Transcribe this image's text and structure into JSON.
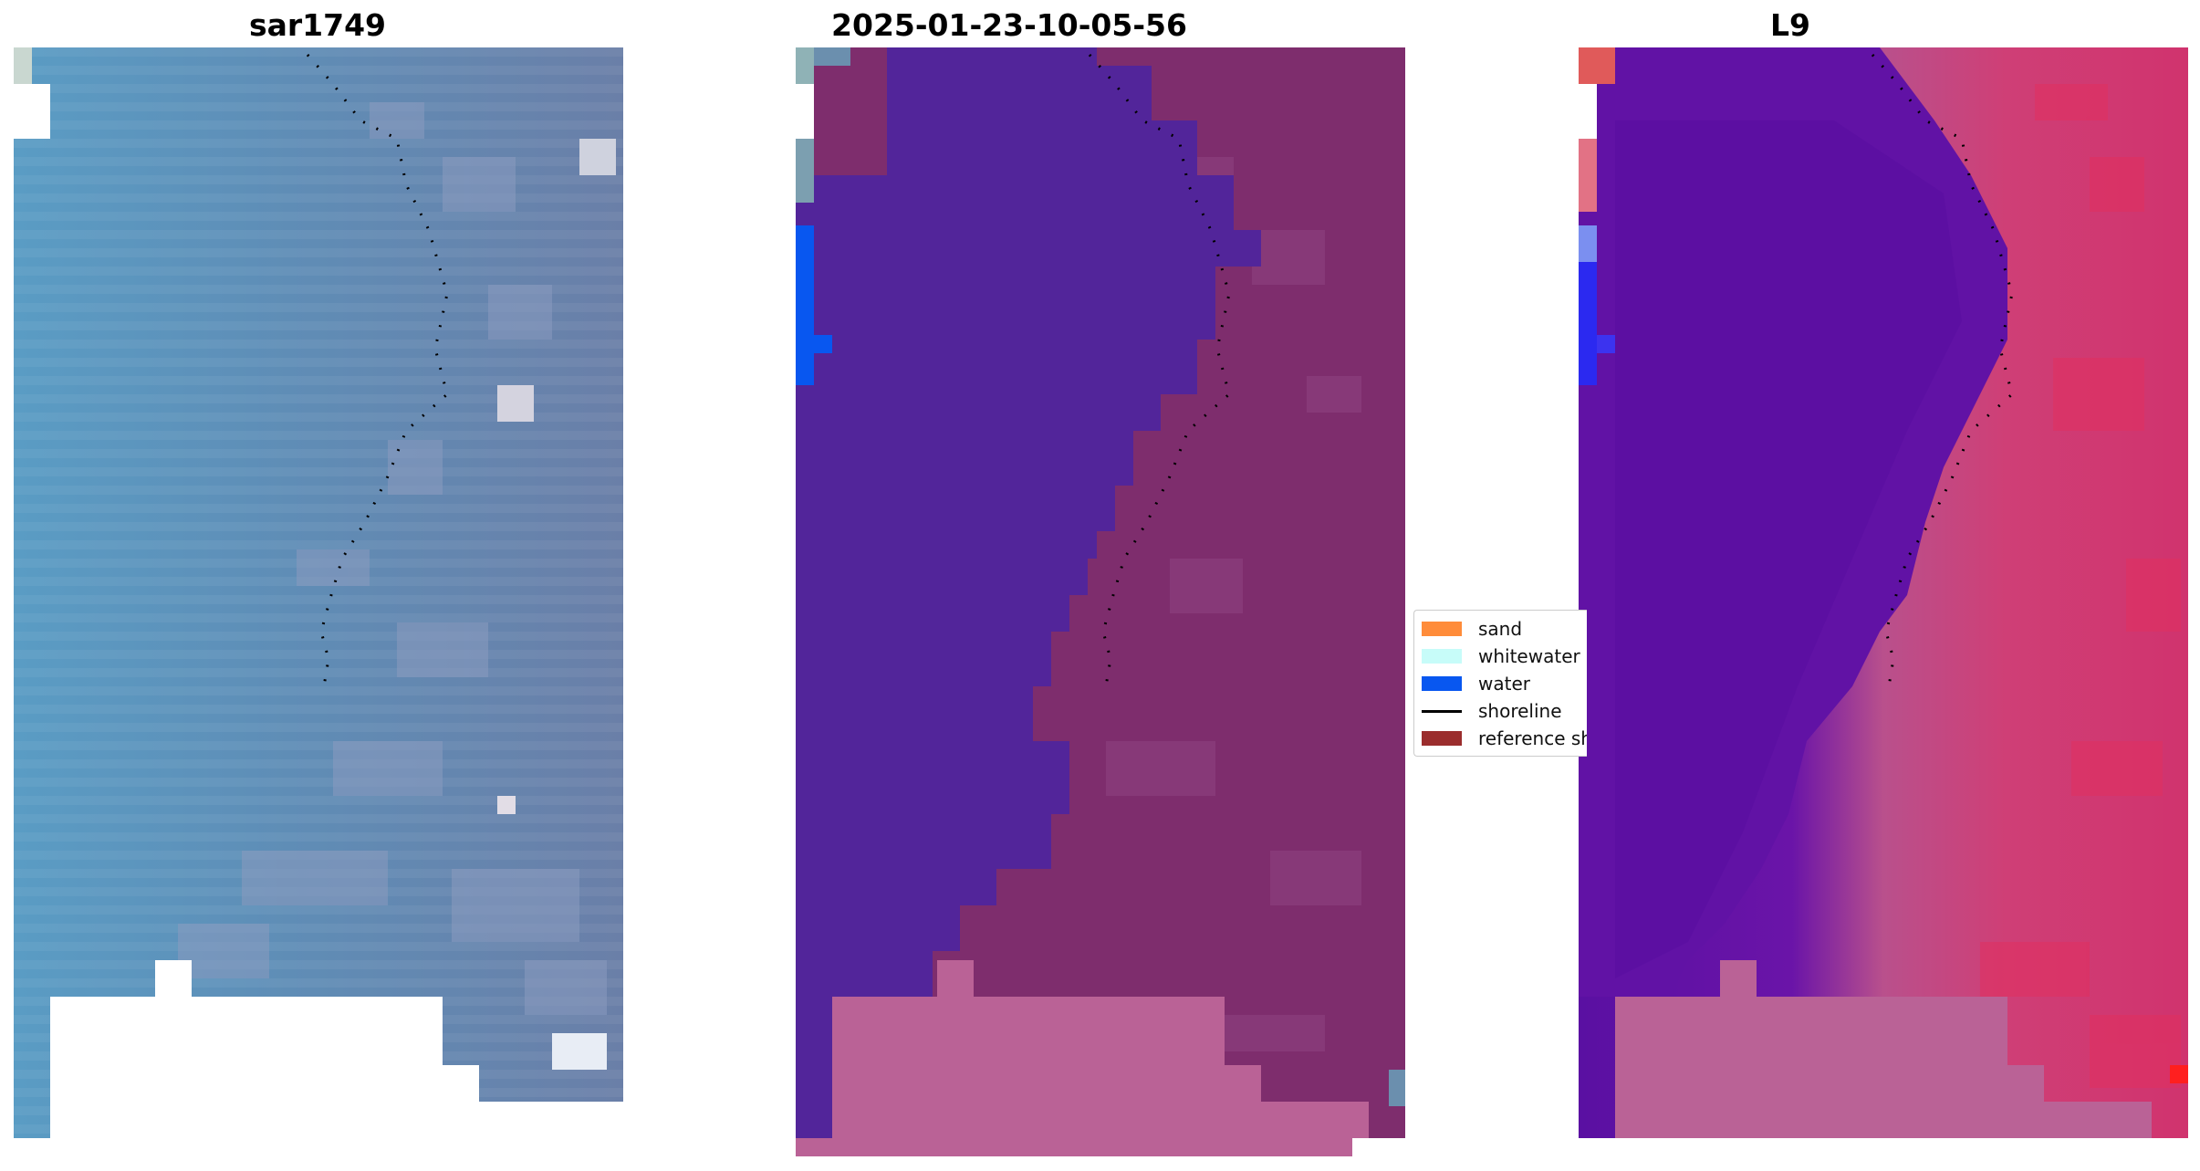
{
  "panels": [
    {
      "id": "rgb",
      "title": "sar1749"
    },
    {
      "id": "classified",
      "title": "2025-01-23-10-05-56"
    },
    {
      "id": "index",
      "title": "L9"
    }
  ],
  "legend": {
    "items": [
      {
        "label": "sand",
        "color": "#ff8c3a",
        "kind": "patch"
      },
      {
        "label": "whitewater",
        "color": "#c7fcf9",
        "kind": "patch"
      },
      {
        "label": "water",
        "color": "#0857f0",
        "kind": "patch"
      },
      {
        "label": "shoreline",
        "color": "#000000",
        "kind": "line"
      },
      {
        "label": "reference shoreline buffer",
        "color": "#9b2d2d",
        "kind": "patch"
      }
    ]
  },
  "colors": {
    "water_rgb": "#5b8fb8",
    "land_rgb": "#7184a8",
    "water_class": "#52259a",
    "land_class": "#7e2d6d",
    "nodata_mask": "#ba6296",
    "water_index": "#5a10a2",
    "land_index": "#d0336e"
  }
}
